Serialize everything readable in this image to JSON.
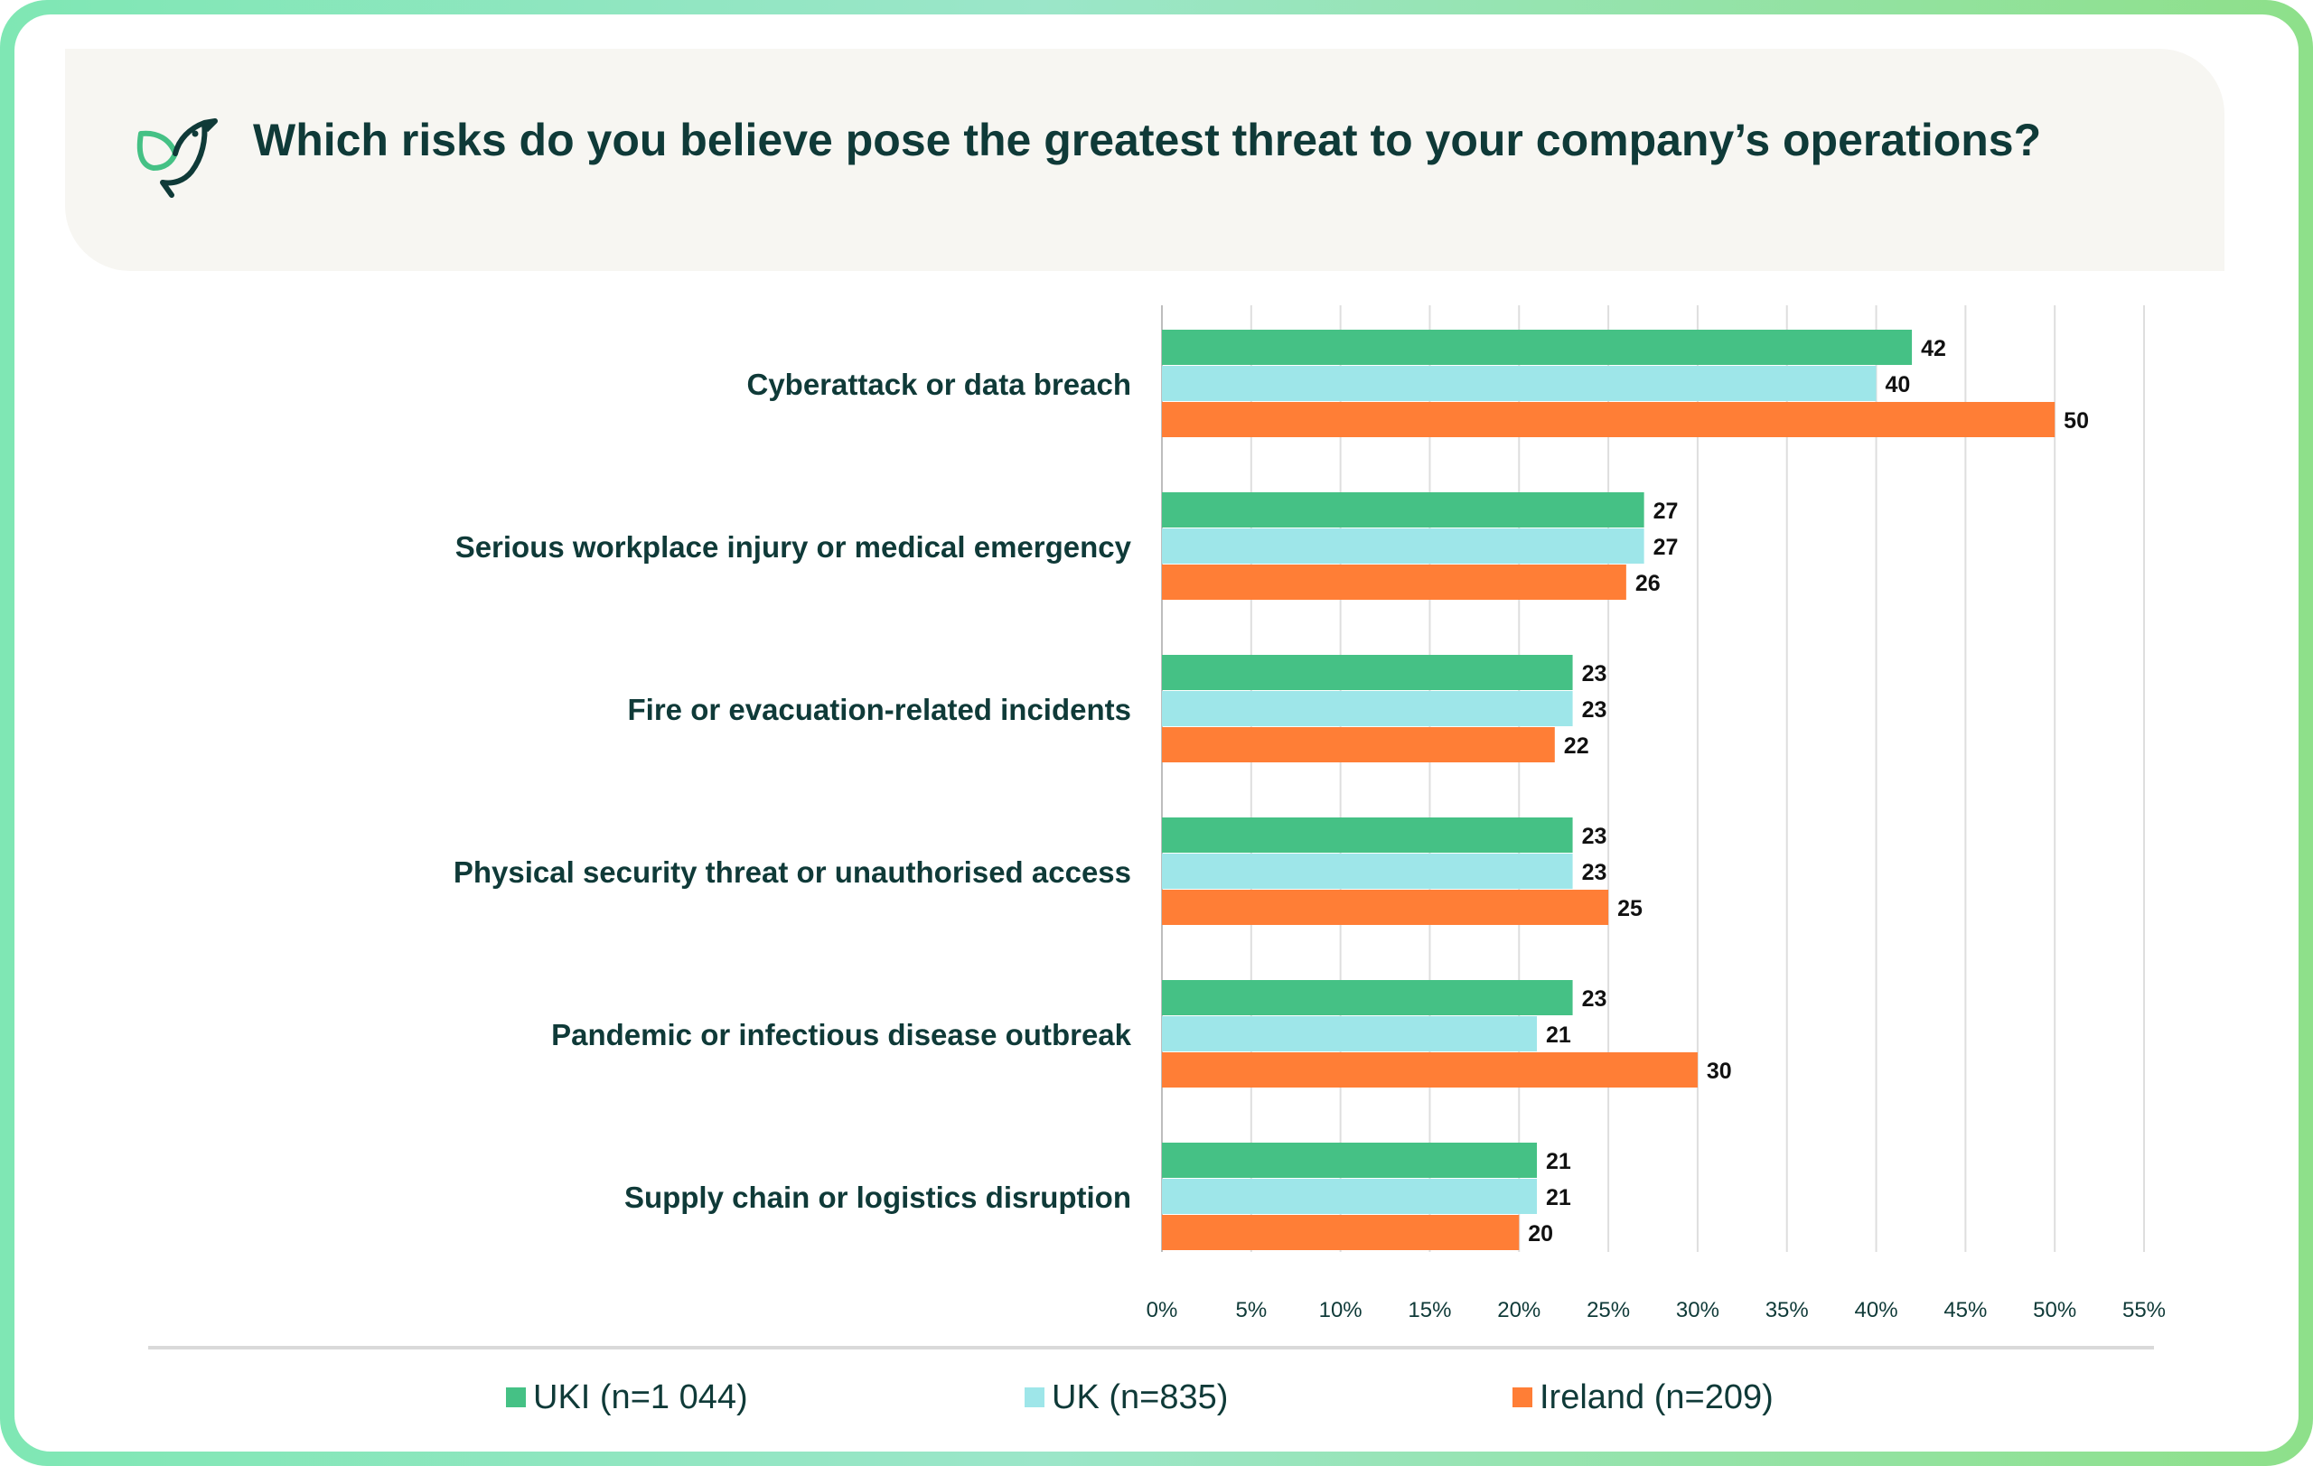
{
  "title": "Which risks do you believe pose the greatest threat to your company’s operations?",
  "colors": {
    "uki": "#45c185",
    "uk": "#9ee6e9",
    "ireland": "#ff7e36",
    "text": "#0f3a38"
  },
  "icons": {
    "logo": "bird-logo-icon"
  },
  "chart_data": {
    "type": "bar",
    "orientation": "horizontal",
    "categories": [
      "Cyberattack or data breach",
      "Serious workplace injury or medical emergency",
      "Fire or evacuation-related incidents",
      "Physical security threat or unauthorised access",
      "Pandemic or infectious disease outbreak",
      "Supply chain or logistics disruption"
    ],
    "series": [
      {
        "name": "UKI (n=1 044)",
        "values": [
          42,
          27,
          23,
          23,
          23,
          21
        ]
      },
      {
        "name": "UK (n=835)",
        "values": [
          40,
          27,
          23,
          23,
          21,
          21
        ]
      },
      {
        "name": "Ireland (n=209)",
        "values": [
          50,
          26,
          22,
          25,
          30,
          20
        ]
      }
    ],
    "xlim": [
      0,
      55
    ],
    "xticks": [
      "0%",
      "5%",
      "10%",
      "15%",
      "20%",
      "25%",
      "30%",
      "35%",
      "40%",
      "45%",
      "50%",
      "55%"
    ],
    "grid": true,
    "legend": "bottom"
  }
}
